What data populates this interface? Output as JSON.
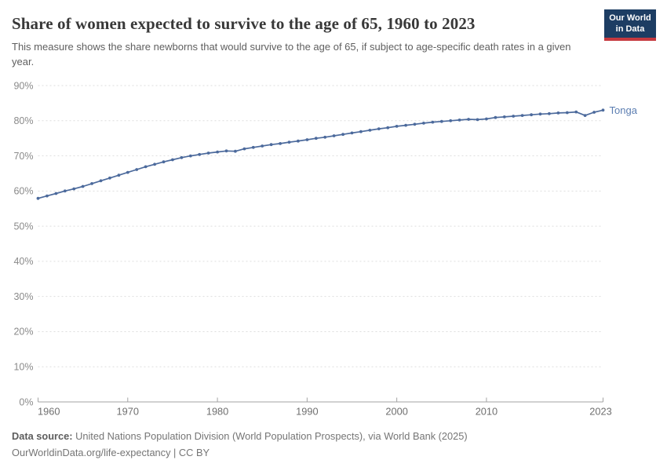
{
  "header": {
    "title": "Share of women expected to survive to the age of 65, 1960 to 2023",
    "subtitle": "This measure shows the share newborns that would survive to the age of 65, if subject to age-specific death rates in a given year."
  },
  "logo": {
    "line1": "Our World",
    "line2": "in Data",
    "bg_color": "#1d3d63",
    "bar_color": "#c5393f"
  },
  "chart_data": {
    "type": "line",
    "title": "Share of women expected to survive to the age of 65, 1960 to 2023",
    "xlabel": "",
    "ylabel": "",
    "unit": "%",
    "ylim": [
      0,
      90
    ],
    "yticks": [
      0,
      10,
      20,
      30,
      40,
      50,
      60,
      70,
      80,
      90
    ],
    "xticks": [
      1960,
      1970,
      1980,
      1990,
      2000,
      2010,
      2023
    ],
    "grid": "dashed-horizontal",
    "legend_position": "end-of-line-label",
    "x": [
      1960,
      1961,
      1962,
      1963,
      1964,
      1965,
      1966,
      1967,
      1968,
      1969,
      1970,
      1971,
      1972,
      1973,
      1974,
      1975,
      1976,
      1977,
      1978,
      1979,
      1980,
      1981,
      1982,
      1983,
      1984,
      1985,
      1986,
      1987,
      1988,
      1989,
      1990,
      1991,
      1992,
      1993,
      1994,
      1995,
      1996,
      1997,
      1998,
      1999,
      2000,
      2001,
      2002,
      2003,
      2004,
      2005,
      2006,
      2007,
      2008,
      2009,
      2010,
      2011,
      2012,
      2013,
      2014,
      2015,
      2016,
      2017,
      2018,
      2019,
      2020,
      2021,
      2022,
      2023
    ],
    "series": [
      {
        "name": "Tonga",
        "color": "#4c6a9c",
        "label_color": "#5b7db1",
        "values": [
          57.9,
          58.6,
          59.3,
          60.0,
          60.6,
          61.3,
          62.1,
          62.9,
          63.7,
          64.5,
          65.3,
          66.1,
          66.9,
          67.6,
          68.3,
          68.9,
          69.5,
          70.0,
          70.4,
          70.8,
          71.1,
          71.4,
          71.3,
          72.0,
          72.4,
          72.8,
          73.2,
          73.5,
          73.9,
          74.2,
          74.6,
          75.0,
          75.3,
          75.7,
          76.1,
          76.5,
          76.9,
          77.3,
          77.7,
          78.0,
          78.4,
          78.7,
          79.0,
          79.3,
          79.6,
          79.8,
          80.0,
          80.2,
          80.4,
          80.3,
          80.5,
          80.9,
          81.1,
          81.3,
          81.5,
          81.7,
          81.9,
          82.0,
          82.2,
          82.3,
          82.5,
          81.5,
          82.4,
          83.0
        ]
      }
    ],
    "axis_colors": {
      "grid": "#dedede",
      "axis_line": "#a3a3a3",
      "y_labels": "#8a8a8a",
      "x_labels": "#6f6f6f"
    }
  },
  "footer": {
    "source_label": "Data source:",
    "source_text": "United Nations Population Division (World Population Prospects), via World Bank (2025)",
    "credit": "OurWorldinData.org/life-expectancy | CC BY"
  }
}
